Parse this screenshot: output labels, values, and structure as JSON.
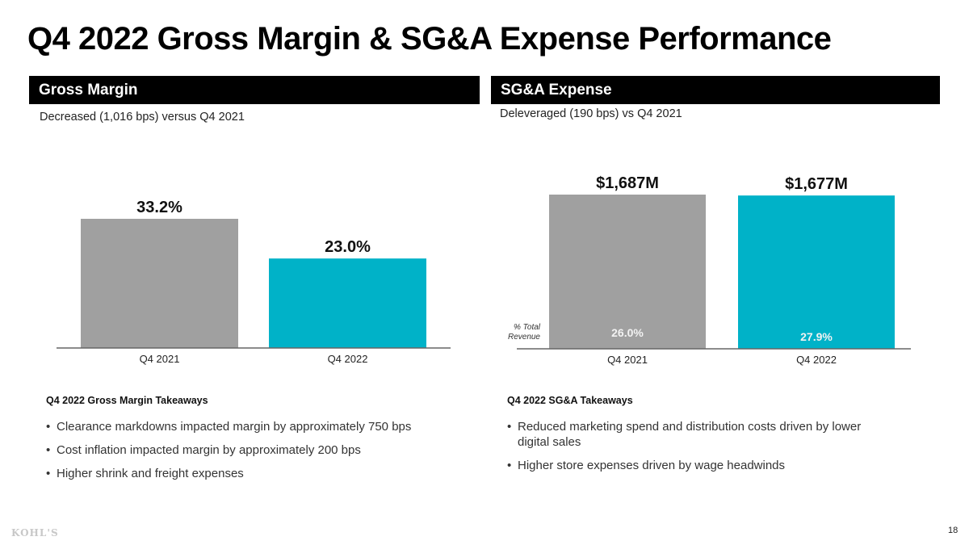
{
  "page": {
    "title": "Q4 2022 Gross Margin & SG&A Expense Performance",
    "logo": "KOHL'S",
    "page_number": "18"
  },
  "sections": {
    "gross_margin": {
      "header": "Gross Margin",
      "subtitle": "Decreased (1,016 bps) versus Q4 2021",
      "takeaways_title": "Q4 2022 Gross Margin Takeaways",
      "takeaways": [
        "Clearance markdowns impacted margin by approximately 750 bps",
        "Cost inflation impacted margin by approximately 200 bps",
        "Higher shrink and freight expenses"
      ]
    },
    "sga": {
      "header": "SG&A Expense",
      "subtitle": "Deleveraged (190 bps) vs Q4 2021",
      "side_note": "% Total Revenue",
      "takeaways_title": "Q4 2022 SG&A Takeaways",
      "takeaways": [
        "Reduced marketing spend and distribution costs driven by lower digital sales",
        "Higher store expenses driven by wage headwinds"
      ]
    }
  },
  "colors": {
    "prior_year": "#a0a0a0",
    "current_year": "#00b2c8",
    "axis": "#666666"
  },
  "chart_data": [
    {
      "type": "bar",
      "title": "Gross Margin",
      "categories": [
        "Q4 2021",
        "Q4 2022"
      ],
      "values": [
        33.2,
        23.0
      ],
      "value_labels": [
        "33.2%",
        "23.0%"
      ],
      "unit": "%",
      "ylim": [
        0,
        33.2
      ],
      "xlabel": "",
      "ylabel": "",
      "grid": false,
      "legend": "none"
    },
    {
      "type": "bar",
      "title": "SG&A Expense",
      "categories": [
        "Q4 2021",
        "Q4 2022"
      ],
      "values": [
        1687,
        1677
      ],
      "value_labels": [
        "$1,687M",
        "$1,677M"
      ],
      "unit": "$M",
      "secondary_values": [
        26.0,
        27.9
      ],
      "secondary_labels": [
        "26.0%",
        "27.9%"
      ],
      "secondary_label_name": "% Total Revenue",
      "ylim": [
        0,
        1687
      ],
      "xlabel": "",
      "ylabel": "",
      "grid": false,
      "legend": "none"
    }
  ]
}
